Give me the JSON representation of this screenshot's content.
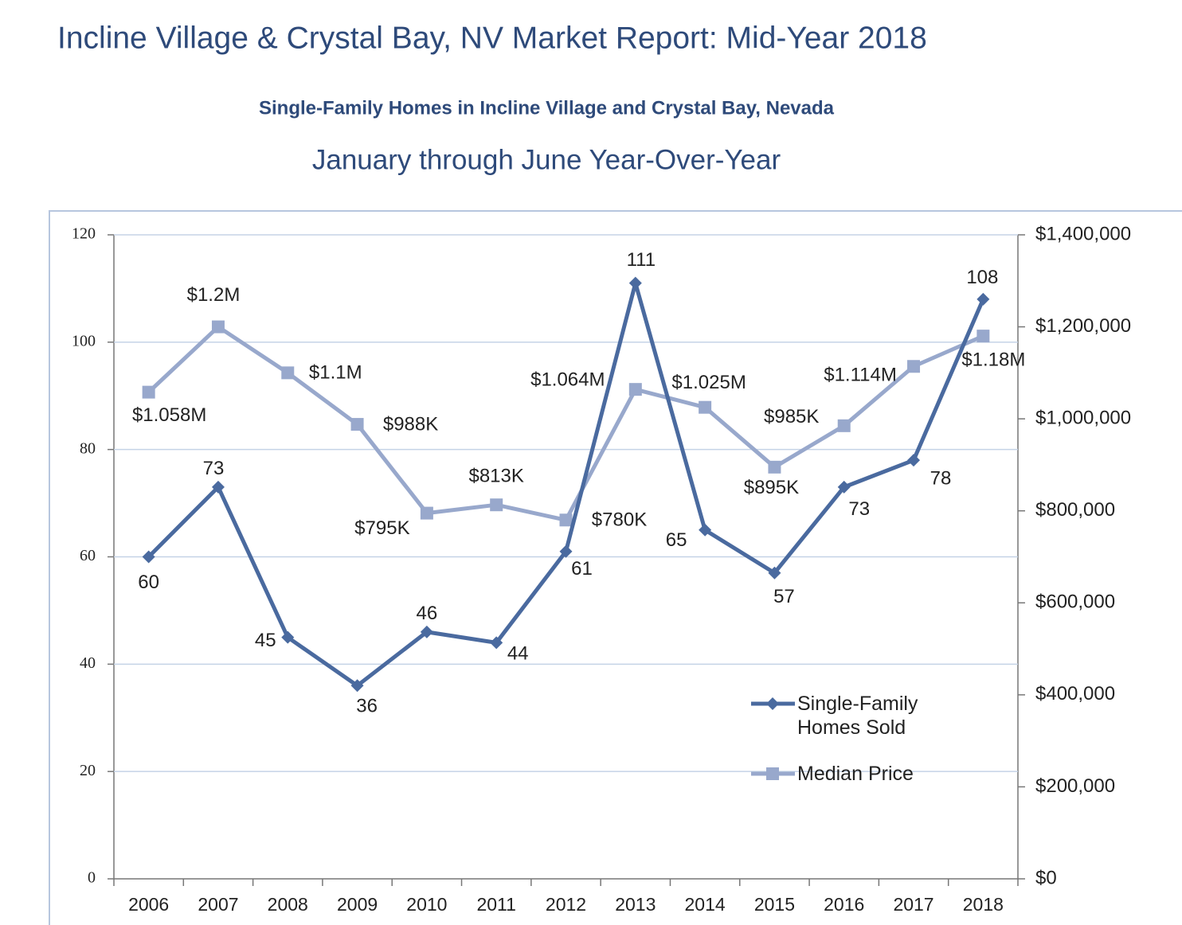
{
  "header": {
    "title": "Incline Village & Crystal Bay, NV Market Report: Mid-Year 2018"
  },
  "chart_data": {
    "type": "line",
    "title": "Single-Family Homes in Incline Village and Crystal Bay, Nevada",
    "subtitle": "January through June Year-Over-Year",
    "categories": [
      "2006",
      "2007",
      "2008",
      "2009",
      "2010",
      "2011",
      "2012",
      "2013",
      "2014",
      "2015",
      "2016",
      "2017",
      "2018"
    ],
    "series": [
      {
        "name": "Single-Family Homes Sold",
        "color": "#4a6a9f",
        "marker": "diamond",
        "values": [
          60,
          73,
          45,
          36,
          46,
          44,
          61,
          111,
          65,
          57,
          73,
          78,
          108
        ]
      },
      {
        "name": "Median Price",
        "color": "#98a8cc",
        "marker": "square",
        "axis": "y2",
        "values": [
          1058000,
          1200000,
          1100000,
          988000,
          795000,
          813000,
          780000,
          1064000,
          1025000,
          895000,
          985000,
          1114000,
          1180000
        ],
        "value_labels": [
          "$1.058M",
          "$1.2M",
          "$1.1M",
          "$988K",
          "$795K",
          "$813K",
          "$780K",
          "$1.064M",
          "$1.025M",
          "$895K",
          "$985K",
          "$1.114M",
          "$1.18M"
        ]
      }
    ],
    "ylim": [
      0,
      120
    ],
    "yticks": [
      0,
      20,
      40,
      60,
      80,
      100,
      120
    ],
    "y2lim": [
      0,
      1400000
    ],
    "y2ticks": [
      {
        "value": 0,
        "label": "$0"
      },
      {
        "value": 200000,
        "label": "$200,000"
      },
      {
        "value": 400000,
        "label": "$400,000"
      },
      {
        "value": 600000,
        "label": "$600,000"
      },
      {
        "value": 800000,
        "label": "$800,000"
      },
      {
        "value": 1000000,
        "label": "$1,000,000"
      },
      {
        "value": 1200000,
        "label": "$1,200,000"
      },
      {
        "value": 1400000,
        "label": "$1,400,000"
      }
    ],
    "grid": true,
    "legend": "lower right"
  }
}
